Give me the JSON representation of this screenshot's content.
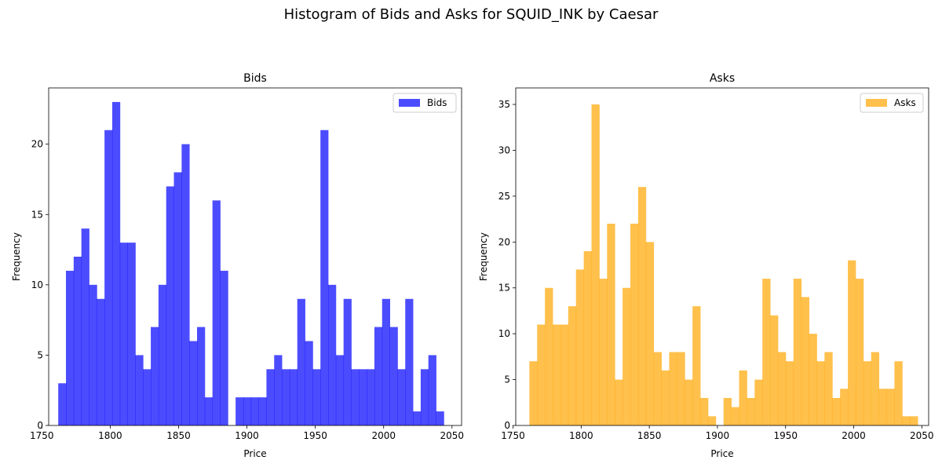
{
  "suptitle": "Histogram of Bids and Asks for SQUID_INK by Caesar",
  "chart_data": [
    {
      "type": "bar",
      "title": "Bids",
      "xlabel": "Price",
      "ylabel": "Frequency",
      "legend": "top-right",
      "color": "#0000ff",
      "xlim": [
        1755,
        2057
      ],
      "ylim": [
        0,
        24
      ],
      "xticks": [
        1750,
        1800,
        1850,
        1900,
        1950,
        2000,
        2050
      ],
      "yticks": [
        0,
        5,
        10,
        15,
        20
      ],
      "series": [
        {
          "name": "Bids",
          "bin_start": 1762,
          "bin_width": 5.64,
          "values": [
            3,
            11,
            12,
            14,
            10,
            9,
            21,
            23,
            13,
            13,
            5,
            4,
            7,
            10,
            17,
            18,
            20,
            6,
            7,
            2,
            16,
            11,
            0,
            2,
            2,
            2,
            2,
            4,
            5,
            4,
            4,
            9,
            6,
            4,
            21,
            10,
            5,
            9,
            4,
            4,
            4,
            7,
            9,
            7,
            4,
            9,
            1,
            4,
            5,
            1
          ]
        }
      ]
    },
    {
      "type": "bar",
      "title": "Asks",
      "xlabel": "Price",
      "ylabel": "Frequency",
      "legend": "top-right",
      "color": "#ffa500",
      "xlim": [
        1752,
        2055
      ],
      "ylim": [
        0,
        36.8
      ],
      "xticks": [
        1750,
        1800,
        1850,
        1900,
        1950,
        2000,
        2050
      ],
      "yticks": [
        0,
        5,
        10,
        15,
        20,
        25,
        30,
        35
      ],
      "series": [
        {
          "name": "Asks",
          "bin_start": 1762,
          "bin_width": 5.7,
          "values": [
            7,
            11,
            15,
            11,
            11,
            13,
            17,
            19,
            35,
            16,
            22,
            5,
            15,
            22,
            26,
            20,
            8,
            6,
            8,
            8,
            5,
            13,
            3,
            1,
            0,
            3,
            2,
            6,
            3,
            5,
            16,
            12,
            8,
            7,
            16,
            14,
            10,
            7,
            8,
            3,
            4,
            18,
            16,
            7,
            8,
            4,
            4,
            7,
            1,
            1
          ]
        }
      ]
    }
  ]
}
